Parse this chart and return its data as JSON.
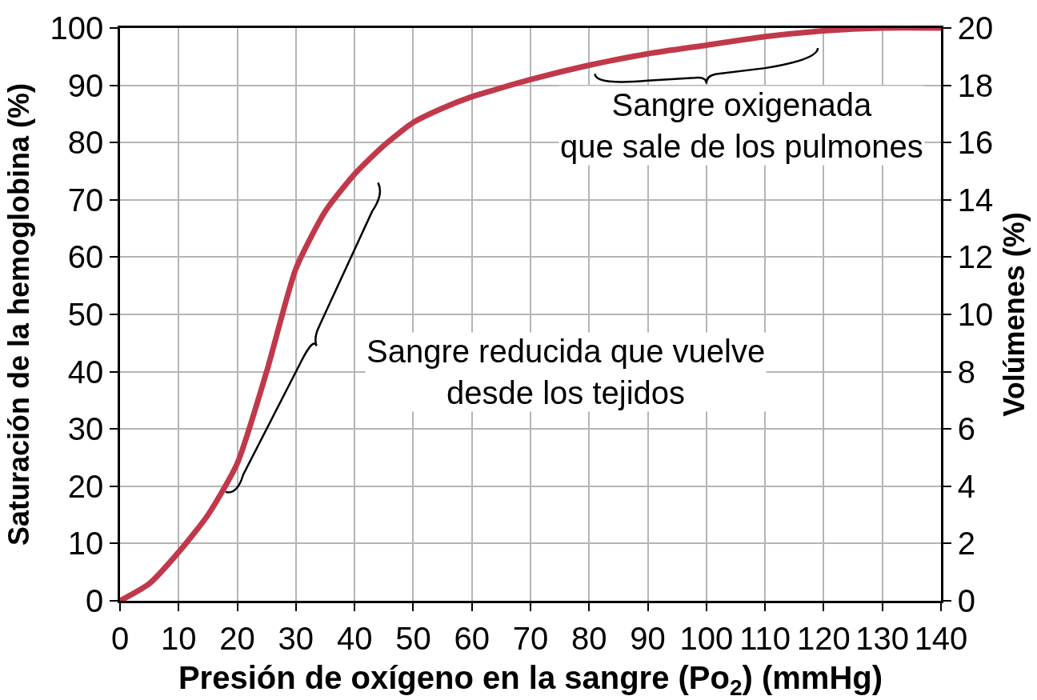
{
  "chart_data": {
    "type": "line",
    "xlabel": "Presión de oxígeno en la sangre (Po$_{2}$) (mmHg)",
    "ylabel": "Saturación de la hemoglobina (%)",
    "y2label": "Volúmenes (%)",
    "x": [
      0,
      5,
      10,
      15,
      20,
      25,
      30,
      35,
      40,
      45,
      50,
      55,
      60,
      70,
      80,
      90,
      100,
      110,
      120,
      130,
      140
    ],
    "series": [
      {
        "color": "#c0394b",
        "values": [
          0,
          3,
          8.5,
          15,
          24,
          40,
          58,
          68,
          74.5,
          79.5,
          83.5,
          86,
          88,
          91,
          93.5,
          95.5,
          97,
          98.5,
          99.5,
          100,
          100
        ]
      }
    ],
    "xlim": [
      0,
      140
    ],
    "xticks": [
      0,
      10,
      20,
      30,
      40,
      50,
      60,
      70,
      80,
      90,
      100,
      110,
      120,
      130,
      140
    ],
    "ylim": [
      0,
      100
    ],
    "yticks": [
      0,
      10,
      20,
      30,
      40,
      50,
      60,
      70,
      80,
      90,
      100
    ],
    "y2lim": [
      0,
      20
    ],
    "y2ticks": [
      0,
      2,
      4,
      6,
      8,
      10,
      12,
      14,
      16,
      18,
      20
    ],
    "grid": true,
    "legend": false,
    "marker": "none",
    "line_style": "solid",
    "annotations": [
      "Sangre oxigenada\nque sale de los pulmones",
      "Sangre reducida que vuelve\ndesde los tejidos"
    ]
  }
}
